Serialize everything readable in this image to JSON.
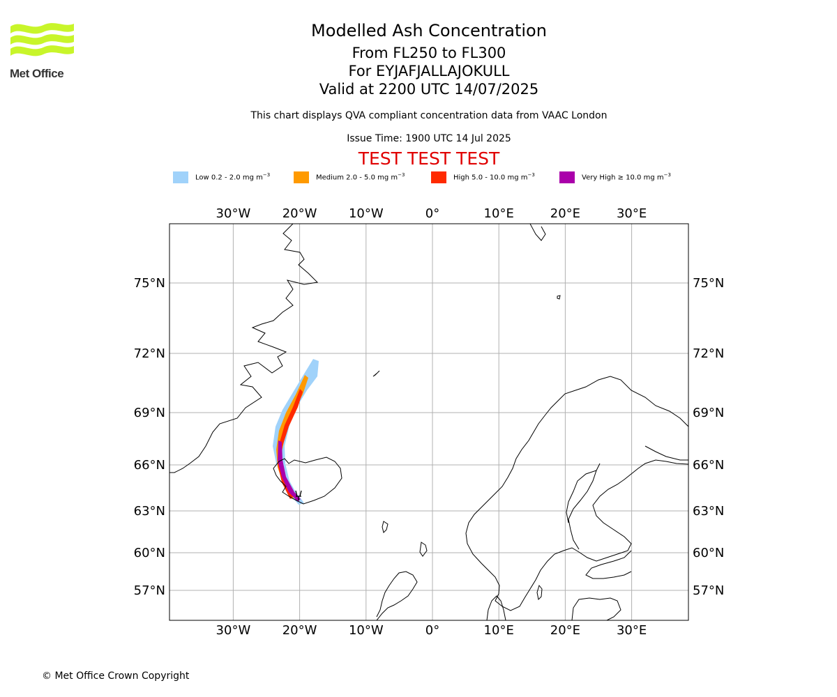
{
  "header": {
    "logo_text": "Met Office",
    "title": "Modelled Ash Concentration",
    "levels": "From FL250 to FL300",
    "volcano": "For EYJAFJALLAJOKULL",
    "valid": "Valid at 2200 UTC 14/07/2025",
    "note": "This chart displays QVA compliant concentration data from VAAC London",
    "issue_time": "Issue Time: 1900 UTC 14 Jul 2025",
    "test_banner": "TEST TEST TEST"
  },
  "legend": [
    {
      "label": "Low 0.2 - 2.0 mg m",
      "sup": "−3",
      "color": "#a0d2fa"
    },
    {
      "label": "Medium 2.0 - 5.0 mg m",
      "sup": "−3",
      "color": "#ff9a00"
    },
    {
      "label": "High 5.0 - 10.0 mg m",
      "sup": "−3",
      "color": "#ff2a00"
    },
    {
      "label": "Very High  ≥  10.0 mg m",
      "sup": "−3",
      "color": "#aa00aa"
    }
  ],
  "map": {
    "lon_ticks": [
      "30°W",
      "20°W",
      "10°W",
      "0°",
      "10°E",
      "20°E",
      "30°E"
    ],
    "lat_ticks": [
      "75°N",
      "72°N",
      "69°N",
      "66°N",
      "63°N",
      "60°N",
      "57°N"
    ],
    "lon_values": [
      -30,
      -20,
      -10,
      0,
      10,
      20,
      30
    ],
    "lat_values": [
      75,
      72,
      69,
      66,
      63,
      60,
      57
    ],
    "coastline_color": "#000000",
    "grid_color": "#b0b0b0"
  },
  "footer": {
    "copyright": "© Met Office Crown Copyright"
  }
}
